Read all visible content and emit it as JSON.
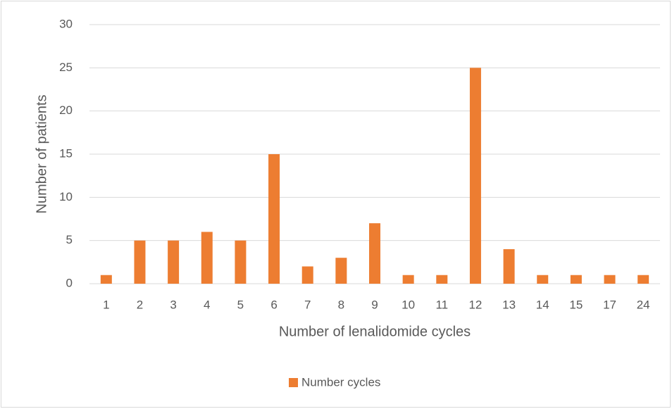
{
  "chart_data": {
    "type": "bar",
    "categories": [
      "1",
      "2",
      "3",
      "4",
      "5",
      "6",
      "7",
      "8",
      "9",
      "10",
      "11",
      "12",
      "13",
      "14",
      "15",
      "17",
      "24"
    ],
    "series": [
      {
        "name": "Number cycles",
        "color": "#ed7d31",
        "values": [
          1,
          5,
          5,
          6,
          5,
          15,
          2,
          3,
          7,
          1,
          1,
          25,
          4,
          1,
          1,
          1,
          1
        ]
      }
    ],
    "xlabel": "Number of lenalidomide cycles",
    "ylabel": "Number of patients",
    "ylim": [
      0,
      30
    ],
    "yticks": [
      0,
      5,
      10,
      15,
      20,
      25,
      30
    ],
    "grid": true,
    "legend": "bottom"
  }
}
